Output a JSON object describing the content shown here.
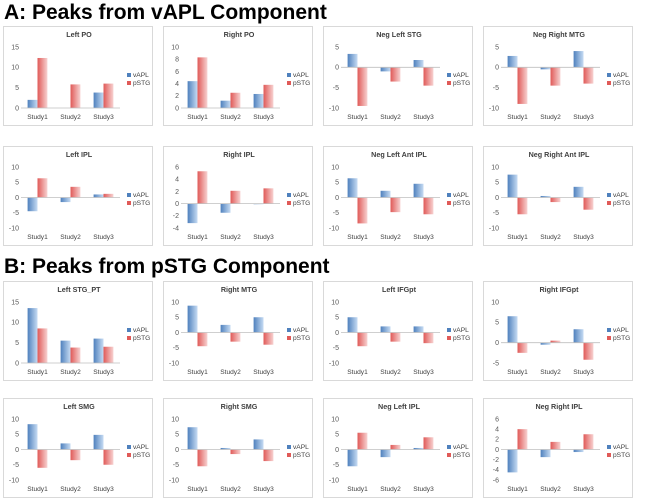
{
  "sections": [
    {
      "title": "A: Peaks from vAPL Component",
      "charts": [
        {
          "type": "bar",
          "title": "Left PO",
          "categories": [
            "Study1",
            "Study2",
            "Study3"
          ],
          "ylim": [
            0,
            15
          ],
          "yticks": [
            0,
            5,
            10,
            15
          ],
          "series": [
            {
              "name": "vAPL",
              "values": [
                2,
                0,
                3.8
              ]
            },
            {
              "name": "pSTG",
              "values": [
                12.3,
                5.8,
                6
              ]
            }
          ]
        },
        {
          "type": "bar",
          "title": "Right PO",
          "categories": [
            "Study1",
            "Study2",
            "Study3"
          ],
          "ylim": [
            0,
            10
          ],
          "yticks": [
            0,
            2,
            4,
            6,
            8,
            10
          ],
          "series": [
            {
              "name": "vAPL",
              "values": [
                4.4,
                1.2,
                2.3
              ]
            },
            {
              "name": "pSTG",
              "values": [
                8.3,
                2.5,
                3.8
              ]
            }
          ]
        },
        {
          "type": "bar",
          "title": "Neg Left STG",
          "categories": [
            "Study1",
            "Study2",
            "Study3"
          ],
          "ylim": [
            -10,
            5
          ],
          "yticks": [
            -10,
            -5,
            0,
            5
          ],
          "series": [
            {
              "name": "vAPL",
              "values": [
                3.3,
                -1,
                1.8
              ]
            },
            {
              "name": "pSTG",
              "values": [
                -9.5,
                -3.5,
                -4.5
              ]
            }
          ]
        },
        {
          "type": "bar",
          "title": "Neg Right MTG",
          "categories": [
            "Study1",
            "Study2",
            "Study3"
          ],
          "ylim": [
            -10,
            5
          ],
          "yticks": [
            -10,
            -5,
            0,
            5
          ],
          "series": [
            {
              "name": "vAPL",
              "values": [
                2.8,
                -0.5,
                4
              ]
            },
            {
              "name": "pSTG",
              "values": [
                -9,
                -4.5,
                -4
              ]
            }
          ]
        },
        {
          "type": "bar",
          "title": "Left IPL",
          "categories": [
            "Study1",
            "Study2",
            "Study3"
          ],
          "ylim": [
            -10,
            10
          ],
          "yticks": [
            -10,
            -5,
            0,
            5,
            10
          ],
          "series": [
            {
              "name": "vAPL",
              "values": [
                -4.5,
                -1.5,
                1
              ]
            },
            {
              "name": "pSTG",
              "values": [
                6.3,
                3.5,
                1.2
              ]
            }
          ]
        },
        {
          "type": "bar",
          "title": "Right IPL",
          "categories": [
            "Study1",
            "Study2",
            "Study3"
          ],
          "ylim": [
            -4,
            6
          ],
          "yticks": [
            -4,
            -2,
            0,
            2,
            4,
            6
          ],
          "series": [
            {
              "name": "vAPL",
              "values": [
                -3.2,
                -1.5,
                -0.1
              ]
            },
            {
              "name": "pSTG",
              "values": [
                5.3,
                2.1,
                2.5
              ]
            }
          ]
        },
        {
          "type": "bar",
          "title": "Neg Left Ant IPL",
          "categories": [
            "Study1",
            "Study2",
            "Study3"
          ],
          "ylim": [
            -10,
            10
          ],
          "yticks": [
            -10,
            -5,
            0,
            5,
            10
          ],
          "series": [
            {
              "name": "vAPL",
              "values": [
                6.3,
                2.2,
                4.5
              ]
            },
            {
              "name": "pSTG",
              "values": [
                -8.5,
                -4.8,
                -5.5
              ]
            }
          ]
        },
        {
          "type": "bar",
          "title": "Neg Right Ant IPL",
          "categories": [
            "Study1",
            "Study2",
            "Study3"
          ],
          "ylim": [
            -10,
            10
          ],
          "yticks": [
            -10,
            -5,
            0,
            5,
            10
          ],
          "series": [
            {
              "name": "vAPL",
              "values": [
                7.5,
                0.5,
                3.5
              ]
            },
            {
              "name": "pSTG",
              "values": [
                -5.5,
                -1.5,
                -4
              ]
            }
          ]
        }
      ]
    },
    {
      "title": "B: Peaks from pSTG Component",
      "charts": [
        {
          "type": "bar",
          "title": "Left STG_PT",
          "categories": [
            "Study1",
            "Study2",
            "Study3"
          ],
          "ylim": [
            0,
            15
          ],
          "yticks": [
            0,
            5,
            10,
            15
          ],
          "series": [
            {
              "name": "vAPL",
              "values": [
                13.5,
                5.5,
                6
              ]
            },
            {
              "name": "pSTG",
              "values": [
                8.5,
                3.8,
                4
              ]
            }
          ]
        },
        {
          "type": "bar",
          "title": "Right MTG",
          "categories": [
            "Study1",
            "Study2",
            "Study3"
          ],
          "ylim": [
            -10,
            10
          ],
          "yticks": [
            -10,
            -5,
            0,
            5,
            10
          ],
          "series": [
            {
              "name": "vAPL",
              "values": [
                8.8,
                2.5,
                5
              ]
            },
            {
              "name": "pSTG",
              "values": [
                -4.5,
                -3,
                -4
              ]
            }
          ]
        },
        {
          "type": "bar",
          "title": "Left IFGpt",
          "categories": [
            "Study1",
            "Study2",
            "Study3"
          ],
          "ylim": [
            -10,
            10
          ],
          "yticks": [
            -10,
            -5,
            0,
            5,
            10
          ],
          "series": [
            {
              "name": "vAPL",
              "values": [
                5,
                2,
                2
              ]
            },
            {
              "name": "pSTG",
              "values": [
                -4.5,
                -3,
                -3.5
              ]
            }
          ]
        },
        {
          "type": "bar",
          "title": "Right IFGpt",
          "categories": [
            "Study1",
            "Study2",
            "Study3"
          ],
          "ylim": [
            -5,
            10
          ],
          "yticks": [
            -5,
            0,
            5,
            10
          ],
          "series": [
            {
              "name": "vAPL",
              "values": [
                6.5,
                -0.5,
                3.3
              ]
            },
            {
              "name": "pSTG",
              "values": [
                -2.5,
                0.5,
                -4.2
              ]
            }
          ]
        },
        {
          "type": "bar",
          "title": "Left SMG",
          "categories": [
            "Study1",
            "Study2",
            "Study3"
          ],
          "ylim": [
            -10,
            10
          ],
          "yticks": [
            -10,
            -5,
            0,
            5,
            10
          ],
          "series": [
            {
              "name": "vAPL",
              "values": [
                8.3,
                2,
                4.8
              ]
            },
            {
              "name": "pSTG",
              "values": [
                -6,
                -3.5,
                -5
              ]
            }
          ]
        },
        {
          "type": "bar",
          "title": "Right SMG",
          "categories": [
            "Study1",
            "Study2",
            "Study3"
          ],
          "ylim": [
            -10,
            10
          ],
          "yticks": [
            -10,
            -5,
            0,
            5,
            10
          ],
          "series": [
            {
              "name": "vAPL",
              "values": [
                7.3,
                0.5,
                3.3
              ]
            },
            {
              "name": "pSTG",
              "values": [
                -5.5,
                -1.5,
                -3.8
              ]
            }
          ]
        },
        {
          "type": "bar",
          "title": "Neg Left IPL",
          "categories": [
            "Study1",
            "Study2",
            "Study3"
          ],
          "ylim": [
            -10,
            10
          ],
          "yticks": [
            -10,
            -5,
            0,
            5,
            10
          ],
          "series": [
            {
              "name": "vAPL",
              "values": [
                -5.5,
                -2.5,
                0.5
              ]
            },
            {
              "name": "pSTG",
              "values": [
                5.5,
                1.5,
                4
              ]
            }
          ]
        },
        {
          "type": "bar",
          "title": "Neg Right IPL",
          "categories": [
            "Study1",
            "Study2",
            "Study3"
          ],
          "ylim": [
            -6,
            6
          ],
          "yticks": [
            -6,
            -4,
            -2,
            0,
            2,
            4,
            6
          ],
          "series": [
            {
              "name": "vAPL",
              "values": [
                -4.5,
                -1.5,
                -0.5
              ]
            },
            {
              "name": "pSTG",
              "values": [
                4,
                1.5,
                3
              ]
            }
          ]
        }
      ]
    }
  ],
  "colors": {
    "vAPL": "#4f81bd",
    "vAPL_light": "#c6dbf3",
    "pSTG": "#e05a58",
    "pSTG_light": "#f7d2d1",
    "axis": "#bfbfbf"
  }
}
